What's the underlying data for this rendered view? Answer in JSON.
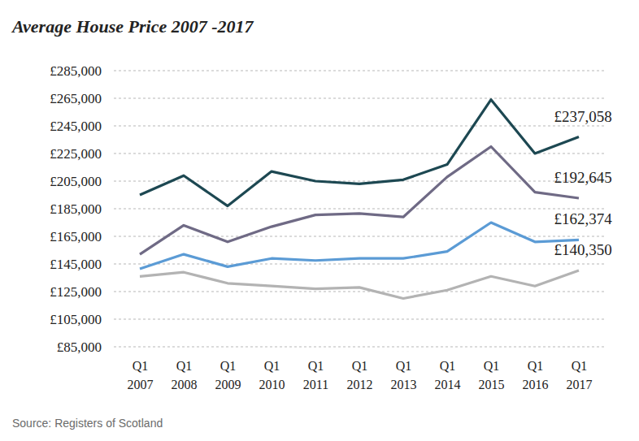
{
  "chart_data": {
    "type": "line",
    "title": "Average House Price 2007 -2017",
    "source": "Source: Registers of Scotland",
    "categories": [
      "Q1 2007",
      "Q1 2008",
      "Q1 2009",
      "Q1 2010",
      "Q1 2011",
      "Q1 2012",
      "Q1 2013",
      "Q1 2014",
      "Q1 2015",
      "Q1 2016",
      "Q1 2017"
    ],
    "ylim": [
      85000,
      285000
    ],
    "yticks": [
      {
        "value": 85000,
        "label": "£85,000"
      },
      {
        "value": 105000,
        "label": "£105,000"
      },
      {
        "value": 125000,
        "label": "£125,000"
      },
      {
        "value": 145000,
        "label": "£145,000"
      },
      {
        "value": 165000,
        "label": "£165,000"
      },
      {
        "value": 185000,
        "label": "£185,000"
      },
      {
        "value": 205000,
        "label": "£205,000"
      },
      {
        "value": 225000,
        "label": "£225,000"
      },
      {
        "value": 245000,
        "label": "£245,000"
      },
      {
        "value": 265000,
        "label": "£265,000"
      },
      {
        "value": 285000,
        "label": "£285,000"
      }
    ],
    "grid": true,
    "data_labels": true,
    "series": [
      {
        "color": "#1d4852",
        "values": [
          195000,
          209000,
          187000,
          212000,
          205000,
          203000,
          206000,
          217000,
          264000,
          225000,
          237058
        ],
        "value_labels": [
          null,
          null,
          null,
          null,
          null,
          null,
          null,
          null,
          null,
          null,
          "£237,058"
        ]
      },
      {
        "color": "#6f6a85",
        "values": [
          152000,
          173000,
          161000,
          172000,
          180500,
          181500,
          179000,
          208000,
          230000,
          197000,
          192645
        ],
        "value_labels": [
          null,
          null,
          null,
          null,
          null,
          null,
          null,
          null,
          null,
          null,
          "£192,645"
        ]
      },
      {
        "color": "#5b9bd5",
        "values": [
          141500,
          152000,
          143000,
          149000,
          147500,
          149000,
          149000,
          154000,
          175000,
          161000,
          162374
        ],
        "value_labels": [
          null,
          null,
          null,
          null,
          null,
          null,
          null,
          null,
          null,
          null,
          "£162,374"
        ]
      },
      {
        "color": "#b3b3b3",
        "values": [
          136000,
          139000,
          131000,
          129000,
          127000,
          128000,
          120000,
          126000,
          136000,
          129000,
          140350
        ],
        "value_labels": [
          null,
          null,
          null,
          null,
          null,
          null,
          null,
          null,
          null,
          null,
          "£140,350"
        ]
      }
    ]
  }
}
